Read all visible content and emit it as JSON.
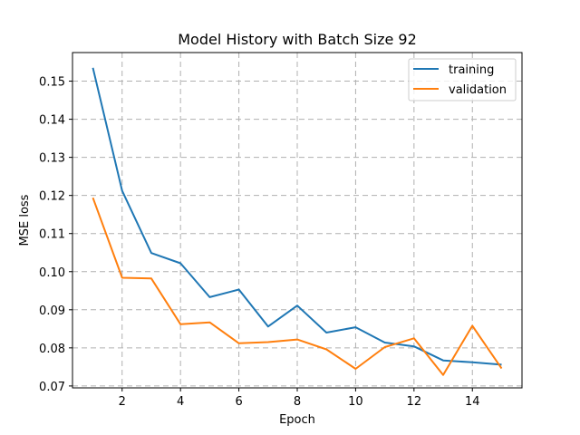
{
  "chart_data": {
    "type": "line",
    "title": "Model History with Batch Size 92",
    "xlabel": "Epoch",
    "ylabel": "MSE loss",
    "xlim": [
      0.3,
      15.7
    ],
    "ylim": [
      0.0695,
      0.1575
    ],
    "xticks": [
      2,
      4,
      6,
      8,
      10,
      12,
      14
    ],
    "yticks": [
      0.07,
      0.08,
      0.09,
      0.1,
      0.11,
      0.12,
      0.13,
      0.14,
      0.15
    ],
    "ytick_labels": [
      "0.07",
      "0.08",
      "0.09",
      "0.10",
      "0.11",
      "0.12",
      "0.13",
      "0.14",
      "0.15"
    ],
    "grid": true,
    "legend_position": "top-right",
    "x": [
      1,
      2,
      3,
      4,
      5,
      6,
      7,
      8,
      9,
      10,
      11,
      12,
      13,
      14,
      15
    ],
    "series": [
      {
        "name": "training",
        "color": "#1f77b4",
        "values": [
          0.1535,
          0.1212,
          0.1049,
          0.1022,
          0.0933,
          0.0953,
          0.0856,
          0.0911,
          0.084,
          0.0854,
          0.0814,
          0.0804,
          0.0767,
          0.0762,
          0.0756
        ]
      },
      {
        "name": "validation",
        "color": "#ff7f0e",
        "values": [
          0.1194,
          0.0984,
          0.0982,
          0.0862,
          0.0867,
          0.0812,
          0.0815,
          0.0822,
          0.0796,
          0.0745,
          0.0802,
          0.0825,
          0.0729,
          0.0858,
          0.0746
        ]
      }
    ]
  }
}
